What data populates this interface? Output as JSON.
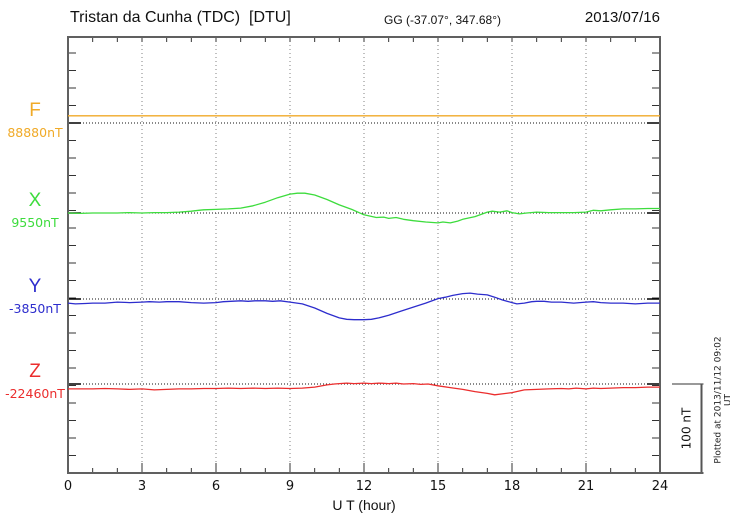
{
  "header": {
    "station_title": "Tristan da Cunha (TDC)  [DTU]",
    "gg_coordinates": "GG (-37.07°, 347.68°)",
    "date": "2013/07/16"
  },
  "footer": {
    "xaxis_label": "U T (hour)"
  },
  "side_notes": {
    "scale_bar_label": "100 nT",
    "plotted_at": "Plotted at 2013/11/12 09:02 UT"
  },
  "chart_data": {
    "type": "line",
    "title": "Tristan da Cunha (TDC)  [DTU]",
    "xlabel": "U T (hour)",
    "x_range": [
      0,
      24
    ],
    "x_major_ticks": [
      0,
      3,
      6,
      9,
      12,
      15,
      18,
      21,
      24
    ],
    "x_minor_step": 1,
    "grid": "vertical dotted lines at 3-hour marks, dotted horizontal baseline per channel",
    "legend_position": "left margin (channel letter with baseline value)",
    "scale_bar": {
      "label": "100 nT",
      "nT": 100
    },
    "offset_unit": "nT deviation from channel baseline",
    "series": [
      {
        "name": "F",
        "color": "#F0AA28",
        "baseline_label": "88880nT",
        "baseline_nT": 88880,
        "points": [
          [
            0,
            8
          ],
          [
            24,
            8
          ]
        ]
      },
      {
        "name": "X",
        "color": "#3DDC3D",
        "baseline_label": "9550nT",
        "baseline_nT": 9550,
        "points": [
          [
            0,
            0
          ],
          [
            0.5,
            -0.5
          ],
          [
            1,
            0
          ],
          [
            1.5,
            0
          ],
          [
            2,
            0
          ],
          [
            2.5,
            0.5
          ],
          [
            3,
            0
          ],
          [
            3.5,
            0.5
          ],
          [
            4,
            0.5
          ],
          [
            4.5,
            1
          ],
          [
            5,
            2
          ],
          [
            5.3,
            3
          ],
          [
            5.5,
            3.5
          ],
          [
            6,
            4
          ],
          [
            6.5,
            4.5
          ],
          [
            7,
            5.5
          ],
          [
            7.5,
            8
          ],
          [
            8,
            12
          ],
          [
            8.5,
            17
          ],
          [
            9,
            21
          ],
          [
            9.3,
            22
          ],
          [
            9.6,
            22
          ],
          [
            10,
            20
          ],
          [
            10.5,
            15
          ],
          [
            11,
            9
          ],
          [
            11.5,
            4
          ],
          [
            12,
            -2
          ],
          [
            12.5,
            -5
          ],
          [
            12.8,
            -4.5
          ],
          [
            13,
            -6
          ],
          [
            13.3,
            -5
          ],
          [
            13.6,
            -7
          ],
          [
            14,
            -8.5
          ],
          [
            14.5,
            -10
          ],
          [
            15,
            -11
          ],
          [
            15.2,
            -10
          ],
          [
            15.5,
            -11
          ],
          [
            15.8,
            -9
          ],
          [
            16,
            -7
          ],
          [
            16.5,
            -4
          ],
          [
            17,
            1
          ],
          [
            17.2,
            2
          ],
          [
            17.5,
            1
          ],
          [
            17.8,
            2.5
          ],
          [
            18,
            0.5
          ],
          [
            18.3,
            -1
          ],
          [
            18.6,
            0
          ],
          [
            19,
            1
          ],
          [
            19.5,
            0.5
          ],
          [
            20,
            0.5
          ],
          [
            20.5,
            0.5
          ],
          [
            21,
            1
          ],
          [
            21.3,
            3
          ],
          [
            21.6,
            2.5
          ],
          [
            22,
            3.5
          ],
          [
            22.5,
            4.5
          ],
          [
            23,
            4.5
          ],
          [
            23.5,
            5
          ],
          [
            24,
            5
          ]
        ]
      },
      {
        "name": "Y",
        "color": "#2D2DCD",
        "baseline_label": "-3850nT",
        "baseline_nT": -3850,
        "points": [
          [
            0,
            -4.5
          ],
          [
            0.3,
            -5.5
          ],
          [
            0.7,
            -5
          ],
          [
            1,
            -4.5
          ],
          [
            1.5,
            -4.5
          ],
          [
            2,
            -3.5
          ],
          [
            2.5,
            -4
          ],
          [
            3,
            -3.5
          ],
          [
            3.3,
            -3
          ],
          [
            3.7,
            -3.5
          ],
          [
            4,
            -3
          ],
          [
            4.5,
            -3
          ],
          [
            5,
            -4
          ],
          [
            5.5,
            -4.5
          ],
          [
            6,
            -4
          ],
          [
            6.3,
            -3
          ],
          [
            6.6,
            -2.5
          ],
          [
            7,
            -2
          ],
          [
            7.3,
            -2.5
          ],
          [
            7.6,
            -2
          ],
          [
            8,
            -2
          ],
          [
            8.3,
            -2.5
          ],
          [
            8.6,
            -2
          ],
          [
            9,
            -3.5
          ],
          [
            9.5,
            -5.5
          ],
          [
            10,
            -10
          ],
          [
            10.5,
            -16
          ],
          [
            11,
            -21
          ],
          [
            11.3,
            -22.5
          ],
          [
            11.6,
            -23
          ],
          [
            12,
            -23
          ],
          [
            12.3,
            -22.5
          ],
          [
            12.6,
            -21
          ],
          [
            13,
            -18
          ],
          [
            13.5,
            -13.5
          ],
          [
            14,
            -9
          ],
          [
            14.5,
            -4.5
          ],
          [
            15,
            0.5
          ],
          [
            15.3,
            2
          ],
          [
            15.6,
            4
          ],
          [
            16,
            6
          ],
          [
            16.3,
            6.5
          ],
          [
            16.6,
            5.5
          ],
          [
            17,
            4.5
          ],
          [
            17.3,
            2
          ],
          [
            17.6,
            -1
          ],
          [
            18,
            -4
          ],
          [
            18.2,
            -5.5
          ],
          [
            18.5,
            -4.5
          ],
          [
            18.8,
            -3
          ],
          [
            19,
            -2.5
          ],
          [
            19.3,
            -2.5
          ],
          [
            19.6,
            -3.5
          ],
          [
            20,
            -3.5
          ],
          [
            20.5,
            -4.5
          ],
          [
            21,
            -3.5
          ],
          [
            21.3,
            -3
          ],
          [
            21.6,
            -4
          ],
          [
            22,
            -4.5
          ],
          [
            22.5,
            -4.5
          ],
          [
            23,
            -5.5
          ],
          [
            23.5,
            -4.5
          ],
          [
            24,
            -4.5
          ]
        ]
      },
      {
        "name": "Z",
        "color": "#EB2D2D",
        "baseline_label": "-22460nT",
        "baseline_nT": -22460,
        "points": [
          [
            0,
            -5.5
          ],
          [
            0.5,
            -5.5
          ],
          [
            1,
            -5.5
          ],
          [
            1.5,
            -5
          ],
          [
            2,
            -5.5
          ],
          [
            2.5,
            -6
          ],
          [
            3,
            -5.5
          ],
          [
            3.5,
            -6.5
          ],
          [
            4,
            -6
          ],
          [
            4.5,
            -5.5
          ],
          [
            5,
            -5.5
          ],
          [
            5.5,
            -5
          ],
          [
            6,
            -5
          ],
          [
            6.5,
            -4.5
          ],
          [
            7,
            -5
          ],
          [
            7.5,
            -4.5
          ],
          [
            8,
            -5
          ],
          [
            8.5,
            -4.5
          ],
          [
            9,
            -5
          ],
          [
            9.5,
            -4.5
          ],
          [
            10,
            -3.5
          ],
          [
            10.5,
            -1
          ],
          [
            10.8,
            0
          ],
          [
            11,
            0.5
          ],
          [
            11.3,
            1
          ],
          [
            11.6,
            0.5
          ],
          [
            12,
            1
          ],
          [
            12.3,
            0.5
          ],
          [
            12.6,
            1
          ],
          [
            13,
            0.5
          ],
          [
            13.3,
            1
          ],
          [
            13.6,
            0
          ],
          [
            14,
            0.5
          ],
          [
            14.3,
            -0.5
          ],
          [
            14.6,
            0
          ],
          [
            15,
            -2
          ],
          [
            15.5,
            -4
          ],
          [
            16,
            -6
          ],
          [
            16.5,
            -8.5
          ],
          [
            17,
            -10.5
          ],
          [
            17.3,
            -12
          ],
          [
            17.6,
            -11
          ],
          [
            18,
            -9.5
          ],
          [
            18.5,
            -6.5
          ],
          [
            19,
            -6
          ],
          [
            19.5,
            -5.5
          ],
          [
            20,
            -5
          ],
          [
            20.3,
            -5.5
          ],
          [
            20.6,
            -4.5
          ],
          [
            21,
            -5.5
          ],
          [
            21.3,
            -4.5
          ],
          [
            21.6,
            -5
          ],
          [
            22,
            -4.5
          ],
          [
            22.5,
            -4
          ],
          [
            23,
            -4
          ],
          [
            23.5,
            -3.5
          ],
          [
            24,
            -3.5
          ]
        ]
      }
    ]
  }
}
